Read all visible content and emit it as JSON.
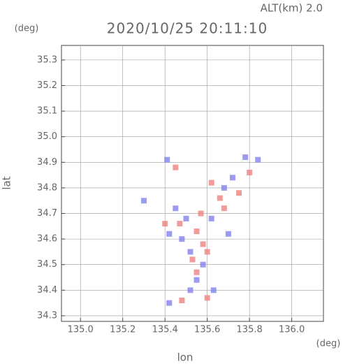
{
  "chart_data": {
    "type": "scatter",
    "title": "2020/10/25 20:11:10",
    "subtitle": "ALT(km)  2.0",
    "y_unit": "(deg)",
    "x_unit": "(deg)",
    "x_label": "lon",
    "y_label": "lat",
    "xlim": [
      134.91,
      136.15
    ],
    "ylim": [
      34.278,
      35.357
    ],
    "xticks": [
      {
        "value": 135.0,
        "label": "135.0"
      },
      135.2,
      135.4,
      135.6,
      135.8,
      {
        "value": 136.0,
        "label": "136.0"
      }
    ],
    "yticks": [
      34.3,
      34.4,
      34.5,
      34.6,
      34.7,
      34.8,
      34.9,
      {
        "value": 35.0,
        "label": "35.0"
      },
      35.1,
      35.2,
      35.3
    ],
    "grid": true,
    "series": [
      {
        "color": "#7a7aee",
        "x": [
          135.41,
          135.78,
          135.84,
          135.3,
          135.45,
          135.42,
          135.48,
          135.62,
          135.7,
          135.52,
          135.58,
          135.55,
          135.52,
          135.42,
          135.68,
          135.72,
          135.63,
          135.5
        ],
        "y": [
          34.91,
          34.92,
          34.91,
          34.75,
          34.72,
          34.62,
          34.6,
          34.68,
          34.62,
          34.55,
          34.5,
          34.44,
          34.4,
          34.35,
          34.8,
          34.84,
          34.4,
          34.68
        ]
      },
      {
        "color": "#ee7a7a",
        "x": [
          135.45,
          135.8,
          135.62,
          135.66,
          135.47,
          135.55,
          135.58,
          135.53,
          135.6,
          135.55,
          135.48,
          135.6,
          135.4,
          135.68,
          135.75,
          135.57
        ],
        "y": [
          34.88,
          34.86,
          34.82,
          34.76,
          34.66,
          34.63,
          34.58,
          34.52,
          34.55,
          34.47,
          34.36,
          34.37,
          34.66,
          34.72,
          34.78,
          34.7
        ]
      }
    ]
  }
}
